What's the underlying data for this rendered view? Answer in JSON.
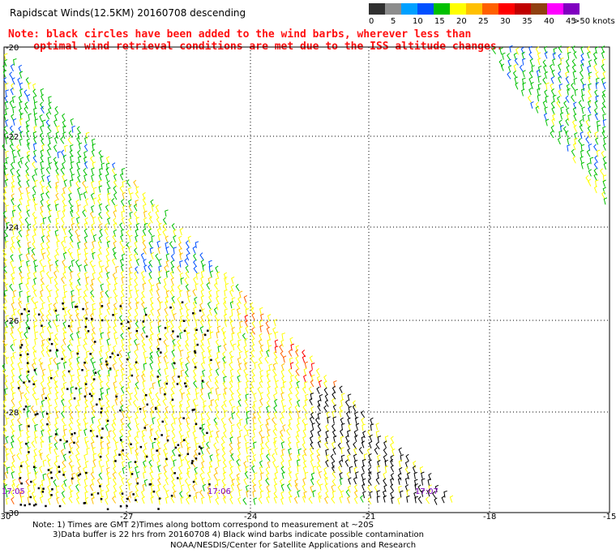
{
  "title": "Rapidscat Winds(12.5KM) 20160708 descending",
  "note_line1": "Note: black circles have been added to the wind barbs, wherever less than",
  "note_line2": "    optimal wind retrieval conditions are met due to the ISS altitude changes.",
  "colorbar": {
    "unit_label": ">50 knots",
    "ticks": [
      "0",
      "5",
      "10",
      "15",
      "20",
      "25",
      "30",
      "35",
      "40",
      "45"
    ],
    "colors": [
      "#303030",
      "#8c8c8c",
      "#00a0ff",
      "#0050ff",
      "#00c000",
      "#ffff00",
      "#ffc000",
      "#ff6000",
      "#ff0000",
      "#c00000",
      "#904010",
      "#ff00ff",
      "#8000c0"
    ]
  },
  "axes": {
    "lat_labels": [
      "-20",
      "-22",
      "-24",
      "-26",
      "-28",
      "-30"
    ],
    "lon_labels": [
      "-30",
      "-27",
      "-24",
      "-21",
      "-18",
      "-15"
    ]
  },
  "time_labels": [
    "17:05",
    "17:06",
    "17:07"
  ],
  "footer": {
    "line1": "Note: 1) Times are GMT 2)Times along bottom correspond to measurement at ~20S",
    "line2": "3)Data buffer is 22 hrs from 20160708 4) Black wind barbs indicate possible contamination",
    "line3": "NOAA/NESDIS/Center for Satellite Applications and Research"
  }
}
